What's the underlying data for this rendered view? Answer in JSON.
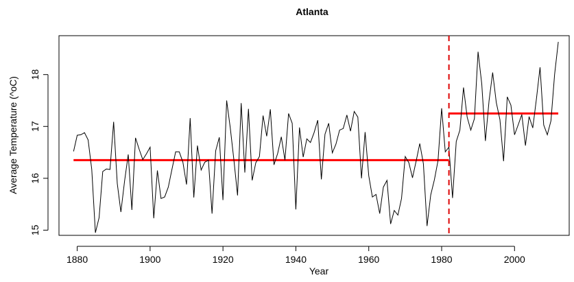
{
  "chart_data": {
    "type": "line",
    "title": "Atlanta",
    "xlabel": "Year",
    "ylabel": "Average Temperature (^oC)",
    "xlim": [
      1875,
      2015
    ],
    "ylim": [
      14.9,
      18.75
    ],
    "x_ticks": [
      1880,
      1900,
      1920,
      1940,
      1960,
      1980,
      2000
    ],
    "y_ticks": [
      15,
      16,
      17,
      18
    ],
    "grid": false,
    "legend": "none",
    "series": [
      {
        "color": "#000000",
        "x": [
          1879,
          1880,
          1881,
          1882,
          1883,
          1884,
          1885,
          1886,
          1887,
          1888,
          1889,
          1890,
          1891,
          1892,
          1893,
          1894,
          1895,
          1896,
          1897,
          1898,
          1899,
          1900,
          1901,
          1902,
          1903,
          1904,
          1905,
          1906,
          1907,
          1908,
          1909,
          1910,
          1911,
          1912,
          1913,
          1914,
          1915,
          1916,
          1917,
          1918,
          1919,
          1920,
          1921,
          1922,
          1923,
          1924,
          1925,
          1926,
          1927,
          1928,
          1929,
          1930,
          1931,
          1932,
          1933,
          1934,
          1935,
          1936,
          1937,
          1938,
          1939,
          1940,
          1941,
          1942,
          1943,
          1944,
          1945,
          1946,
          1947,
          1948,
          1949,
          1950,
          1951,
          1952,
          1953,
          1954,
          1955,
          1956,
          1957,
          1958,
          1959,
          1960,
          1961,
          1962,
          1963,
          1964,
          1965,
          1966,
          1967,
          1968,
          1969,
          1970,
          1971,
          1972,
          1973,
          1974,
          1975,
          1976,
          1977,
          1978,
          1979,
          1980,
          1981,
          1982,
          1983,
          1984,
          1985,
          1986,
          1987,
          1988,
          1989,
          1990,
          1991,
          1992,
          1993,
          1994,
          1995,
          1996,
          1997,
          1998,
          1999,
          2000,
          2001,
          2002,
          2003,
          2004,
          2005,
          2006,
          2007,
          2008,
          2009,
          2010,
          2011,
          2012
        ],
        "y": [
          16.52,
          16.83,
          16.84,
          16.88,
          16.74,
          16.17,
          14.95,
          15.24,
          16.13,
          16.18,
          16.17,
          17.09,
          15.9,
          15.35,
          15.95,
          16.46,
          15.39,
          16.78,
          16.56,
          16.36,
          16.47,
          16.6,
          15.23,
          16.15,
          15.61,
          15.64,
          15.83,
          16.17,
          16.51,
          16.51,
          16.31,
          15.88,
          17.16,
          15.63,
          16.63,
          16.16,
          16.31,
          16.35,
          15.32,
          16.53,
          16.79,
          15.58,
          17.5,
          16.97,
          16.35,
          15.67,
          17.45,
          16.11,
          17.34,
          15.96,
          16.3,
          16.42,
          17.21,
          16.81,
          17.33,
          16.26,
          16.48,
          16.8,
          16.35,
          17.25,
          17.06,
          15.4,
          16.98,
          16.41,
          16.76,
          16.69,
          16.88,
          17.12,
          15.98,
          16.85,
          17.06,
          16.49,
          16.66,
          16.93,
          16.96,
          17.22,
          16.91,
          17.29,
          17.18,
          16.0,
          16.89,
          16.05,
          15.64,
          15.69,
          15.32,
          15.83,
          15.96,
          15.12,
          15.38,
          15.29,
          15.61,
          16.42,
          16.3,
          16.01,
          16.33,
          16.67,
          16.28,
          15.08,
          15.68,
          15.97,
          16.34,
          17.35,
          16.51,
          16.6,
          15.62,
          16.71,
          16.93,
          17.75,
          17.18,
          16.93,
          17.15,
          18.44,
          17.82,
          16.72,
          17.49,
          18.04,
          17.46,
          17.13,
          16.33,
          17.57,
          17.41,
          16.84,
          17.03,
          17.23,
          16.63,
          17.19,
          16.97,
          17.53,
          18.14,
          17.03,
          16.84,
          17.11,
          18.0,
          18.63
        ]
      }
    ],
    "segment_means": [
      {
        "x_start": 1879,
        "x_end": 1982,
        "value": 16.35,
        "color": "#ff0000"
      },
      {
        "x_start": 1982,
        "x_end": 2012,
        "value": 17.25,
        "color": "#ff0000"
      }
    ],
    "changepoint": {
      "x": 1982,
      "color": "#dd0000",
      "style": "dashed"
    }
  }
}
